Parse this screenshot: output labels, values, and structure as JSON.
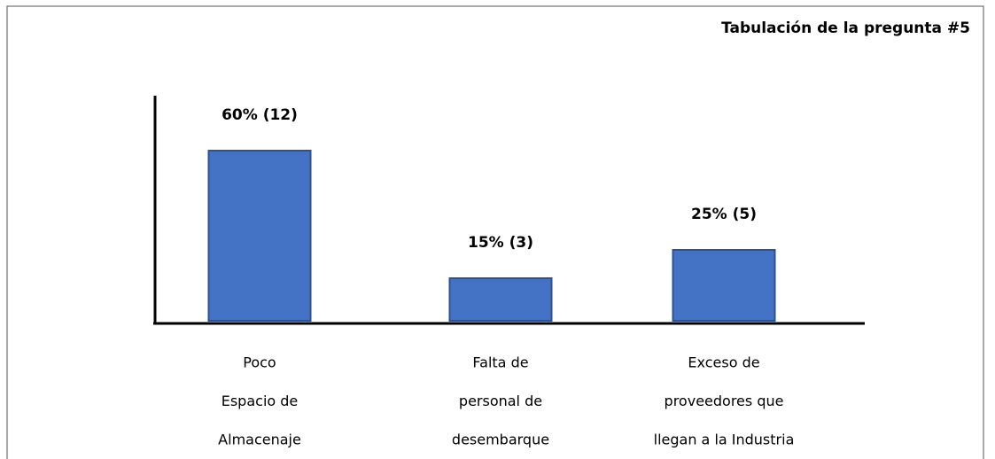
{
  "chart_data": {
    "type": "bar",
    "title": "Tabulación de la pregunta #5",
    "categories": [
      [
        "Poco",
        "Espacio de",
        "Almacenaje"
      ],
      [
        "Falta de",
        "personal de",
        "desembarque"
      ],
      [
        "Exceso de",
        "proveedores que",
        "llegan a la Industria"
      ]
    ],
    "values": [
      60,
      15,
      25
    ],
    "value_labels": [
      "60% (12)",
      "15% (3)",
      "25% (5)"
    ],
    "color": "#4472c4"
  }
}
